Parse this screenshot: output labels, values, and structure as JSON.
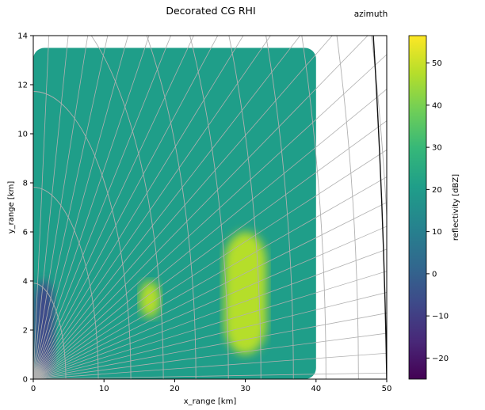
{
  "chart_data": {
    "type": "heatmap",
    "title": "Decorated CG RHI",
    "corner_label": "azimuth",
    "xlabel": "x_range [km]",
    "ylabel": "y_range [km]",
    "xlim": [
      0,
      50
    ],
    "ylim": [
      0,
      14
    ],
    "xticks": [
      0,
      10,
      20,
      30,
      40,
      50
    ],
    "yticks": [
      0,
      2,
      4,
      6,
      8,
      10,
      12,
      14
    ],
    "grid": "curvilinear range rings and elevation rays",
    "colormap": "viridis",
    "colorbar": {
      "label": "reflectivity [dBZ]",
      "min": -25,
      "max": 56.5,
      "ticks": [
        -20,
        -10,
        0,
        10,
        20,
        30,
        40,
        50
      ]
    },
    "echo_regions": [
      {
        "x": [
          0,
          40
        ],
        "y": [
          0,
          13.5
        ],
        "dbz": 18
      },
      {
        "x": [
          27,
          33
        ],
        "y": [
          1,
          6
        ],
        "dbz": 50
      },
      {
        "x": [
          15,
          18
        ],
        "y": [
          2.5,
          4
        ],
        "dbz": 44
      },
      {
        "x": [
          0,
          3
        ],
        "y": [
          0,
          4
        ],
        "dbz": -8
      }
    ],
    "colors": {
      "viridis": [
        "#440154",
        "#482878",
        "#3e4989",
        "#31688e",
        "#26828e",
        "#1f9e89",
        "#35b779",
        "#6ece58",
        "#b5de2b",
        "#fde725"
      ]
    }
  }
}
